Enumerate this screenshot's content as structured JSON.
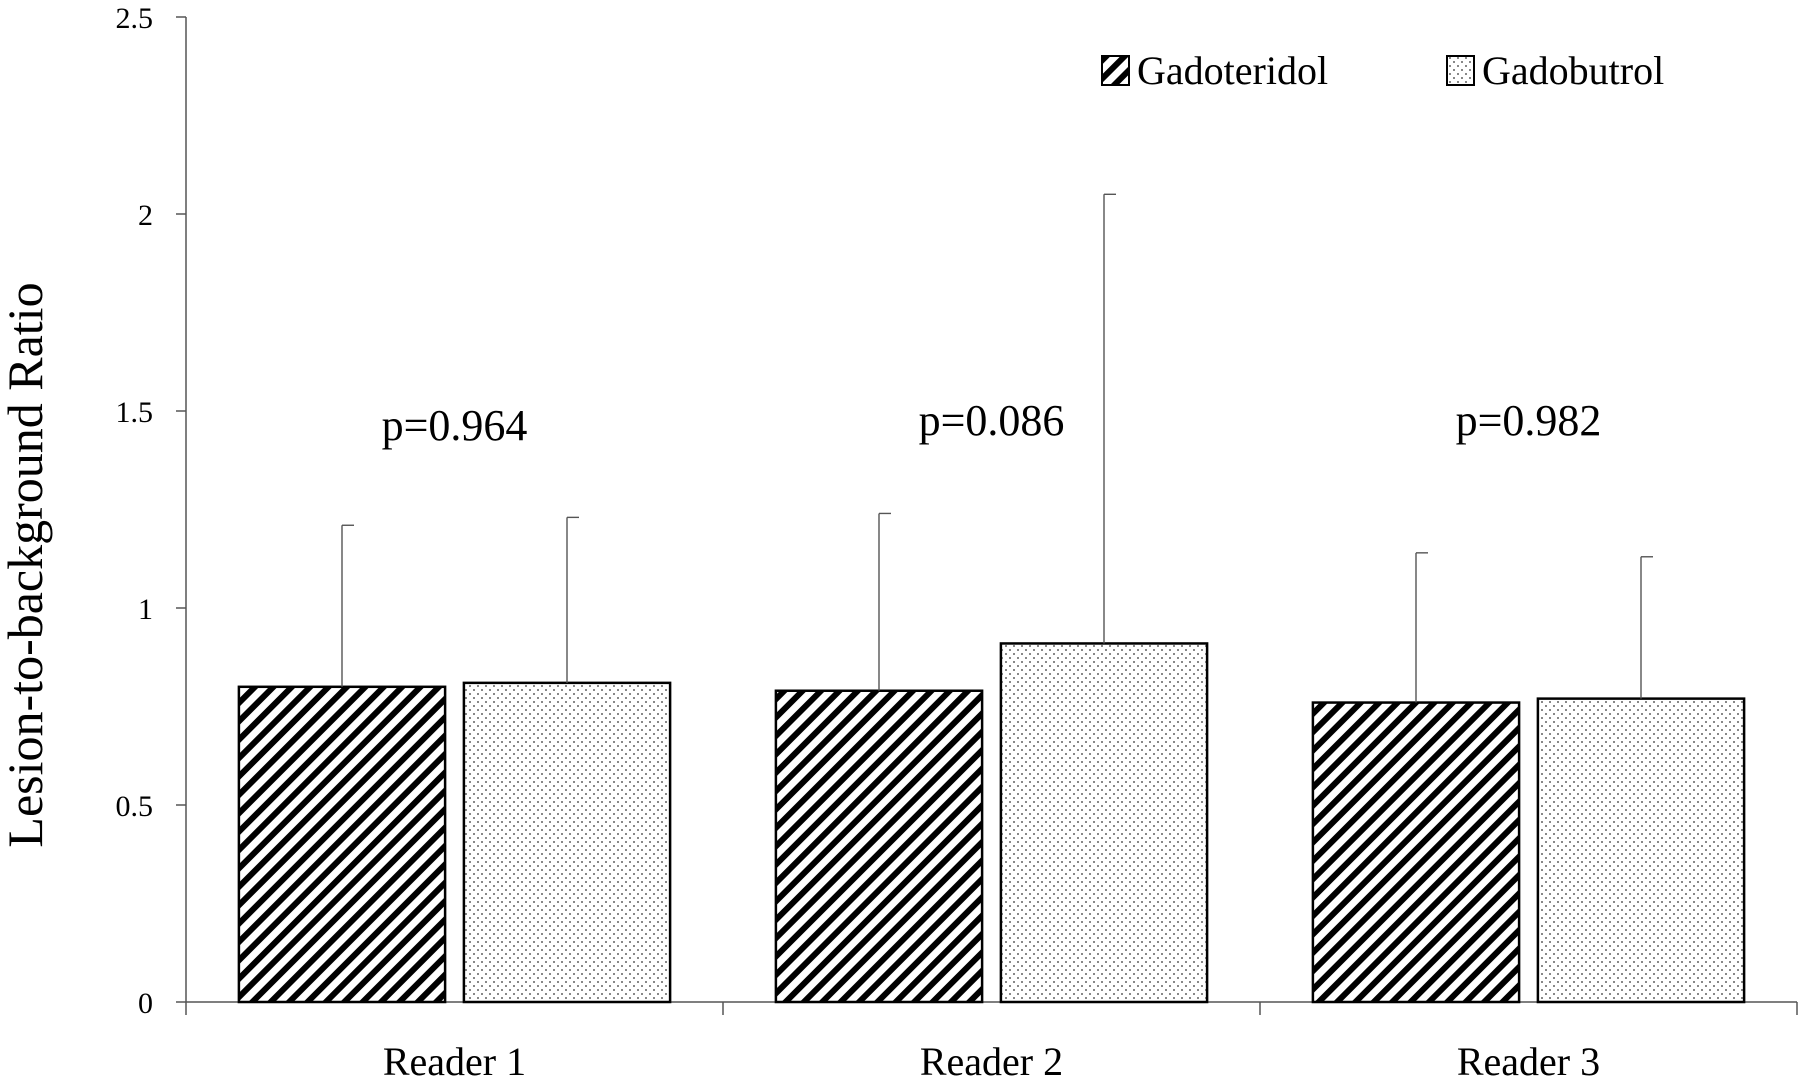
{
  "chart_data": {
    "type": "bar",
    "title": "",
    "xlabel": "",
    "ylabel": "Lesion-to-background Ratio",
    "ylim": [
      0,
      2.5
    ],
    "yticks": [
      "0",
      "0.5",
      "1",
      "1.5",
      "2",
      "2.5"
    ],
    "categories": [
      "Reader 1",
      "Reader 2",
      "Reader 3"
    ],
    "series": [
      {
        "name": "Gadoteridol",
        "pattern": "diagonal-hatch",
        "values": [
          0.8,
          0.79,
          0.76
        ],
        "error_upper": [
          1.21,
          1.24,
          1.14
        ]
      },
      {
        "name": "Gadobutrol",
        "pattern": "dots",
        "values": [
          0.81,
          0.91,
          0.77
        ],
        "error_upper": [
          1.23,
          2.05,
          1.13
        ]
      }
    ],
    "annotations": [
      "p=0.964",
      "p=0.086",
      "p=0.982"
    ],
    "legend": "top-right",
    "grid": false,
    "colors": {
      "bar_outline": "#000000",
      "fill": "#ffffff",
      "axis": "#555555"
    }
  }
}
